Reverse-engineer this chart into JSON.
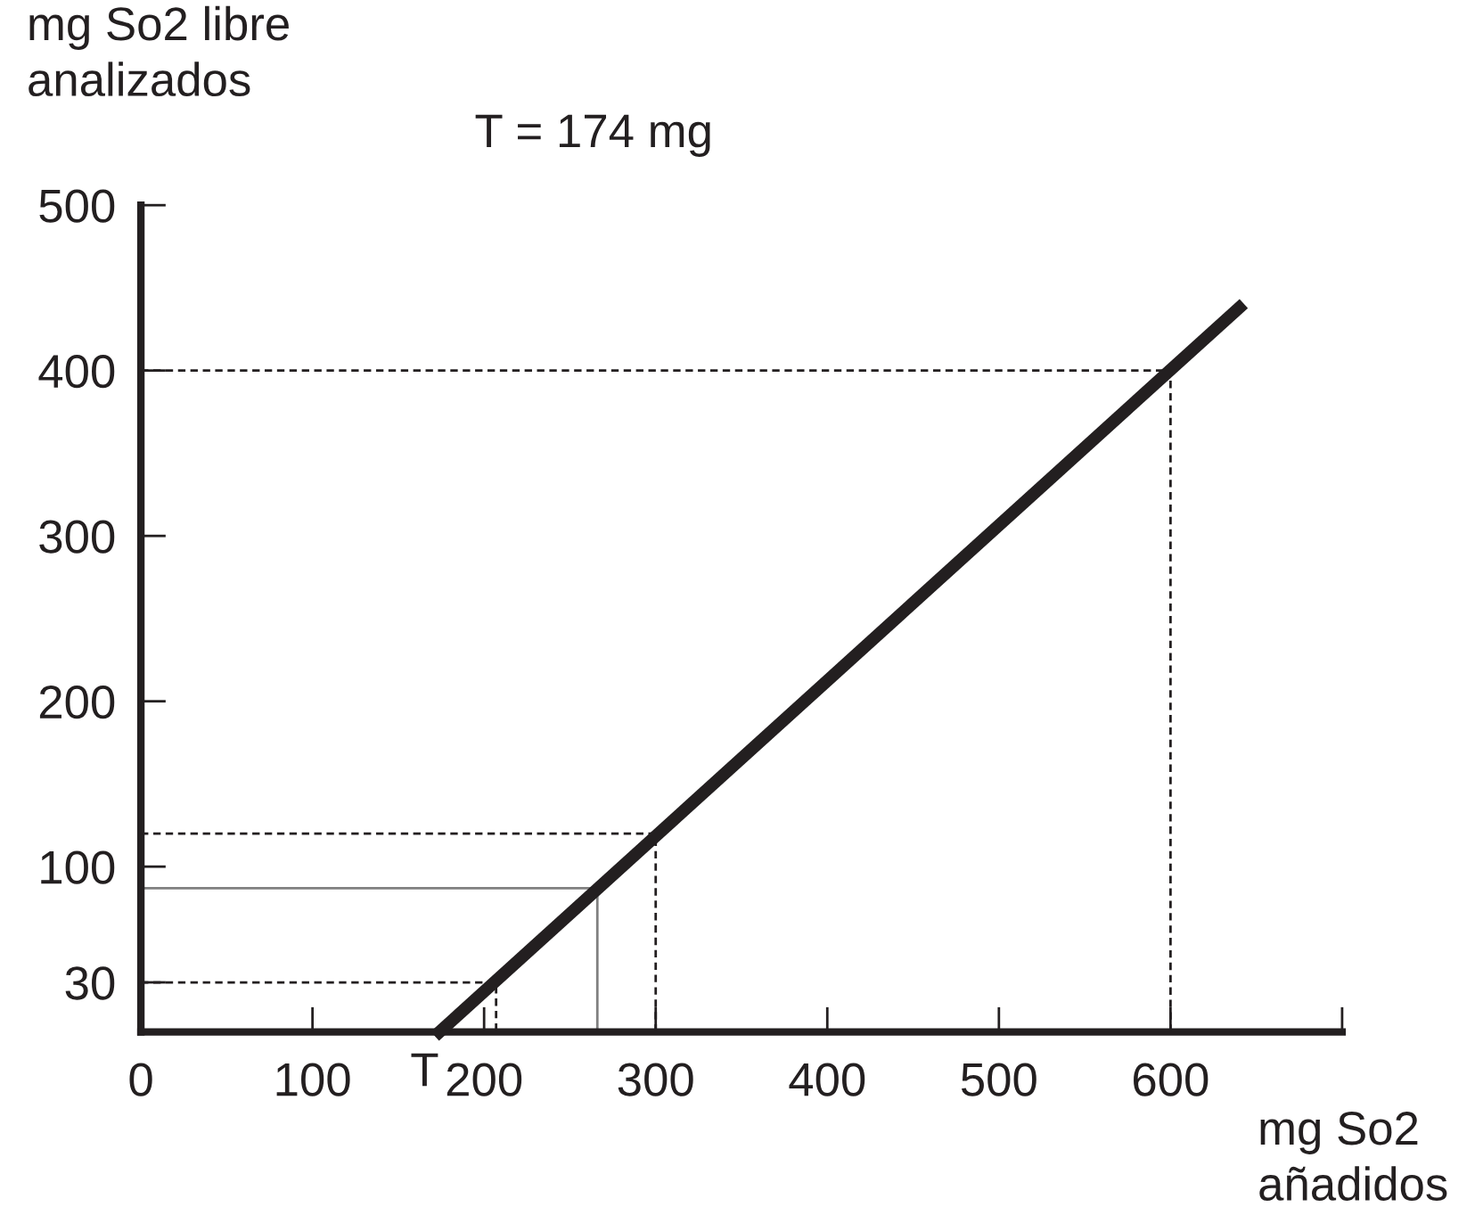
{
  "chart_data": {
    "type": "line",
    "title": "T = 174 mg",
    "xlabel": "mg So2\nañadidos",
    "ylabel": "mg So2 libre\nanalizados",
    "xlim": [
      0,
      700
    ],
    "ylim": [
      0,
      500
    ],
    "xticks": [
      0,
      100,
      200,
      300,
      400,
      500,
      600,
      {
        "value": 700,
        "label": null
      }
    ],
    "yticks": [
      30,
      100,
      200,
      300,
      400,
      500
    ],
    "grid": false,
    "marker": "none",
    "series": [
      {
        "color": "#231f20",
        "x": [
          174,
          640
        ],
        "values": [
          0,
          438
        ],
        "line_style": "solid"
      },
      {
        "color": "#231f20",
        "x": [
          0,
          600,
          600
        ],
        "values": [
          400,
          400,
          0
        ],
        "line_style": "dashed"
      },
      {
        "color": "#231f20",
        "x": [
          0,
          300,
          300
        ],
        "values": [
          120,
          120,
          0
        ],
        "line_style": "dashed"
      },
      {
        "color": "#231f20",
        "x": [
          0,
          207,
          207
        ],
        "values": [
          30,
          30,
          0
        ],
        "line_style": "dashed"
      },
      {
        "color": "#808080",
        "x": [
          0,
          266,
          266
        ],
        "values": [
          87,
          87,
          0
        ],
        "line_style": "solid"
      }
    ],
    "annotations": [
      {
        "text": "T",
        "x": 174,
        "y": 0
      }
    ]
  }
}
